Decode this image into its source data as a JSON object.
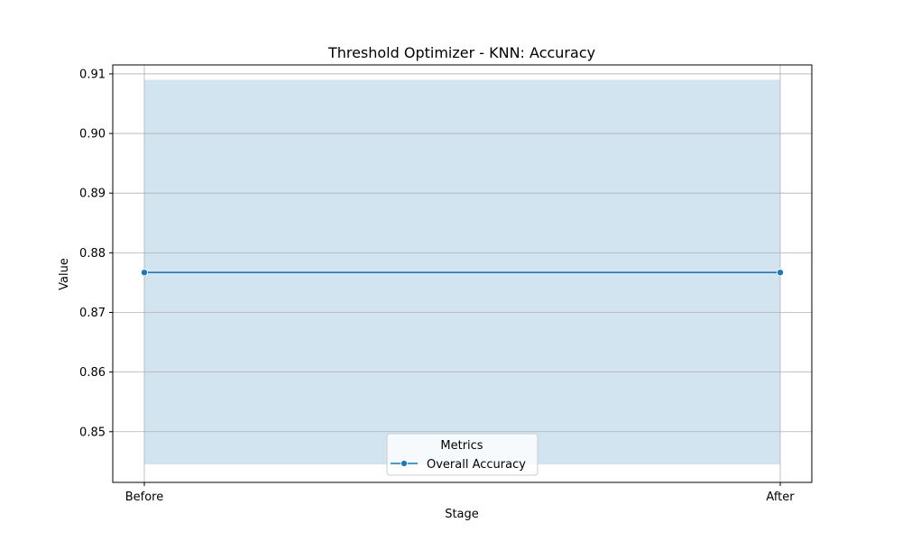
{
  "chart_data": {
    "type": "line",
    "title": "Threshold Optimizer - KNN: Accuracy",
    "xlabel": "Stage",
    "ylabel": "Value",
    "categories": [
      "Before",
      "After"
    ],
    "ylim": [
      0.8415,
      0.9115
    ],
    "yticks": [
      0.85,
      0.86,
      0.87,
      0.88,
      0.89,
      0.9,
      0.91
    ],
    "ytick_labels": [
      "0.85",
      "0.86",
      "0.87",
      "0.88",
      "0.89",
      "0.90",
      "0.91"
    ],
    "grid": true,
    "legend": {
      "title": "Metrics",
      "placement": "bottom-center"
    },
    "series": [
      {
        "name": "Overall Accuracy",
        "values": [
          0.8767,
          0.8767
        ],
        "band_lower": [
          0.8445,
          0.8445
        ],
        "band_upper": [
          0.909,
          0.909
        ],
        "color": "#1f77b4",
        "band_color": "#1f77b4"
      }
    ]
  }
}
